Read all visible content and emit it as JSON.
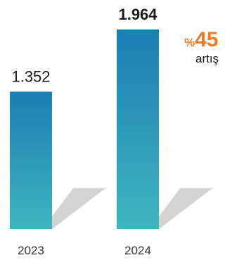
{
  "chart_data": {
    "type": "bar",
    "categories": [
      "2023",
      "2024"
    ],
    "values": [
      1352,
      1964
    ],
    "value_labels": [
      "1.352",
      "1.964"
    ],
    "value_label_weights": [
      "normal",
      "bold"
    ],
    "ylim": [
      0,
      2000
    ],
    "grid": false,
    "legend": "none",
    "bar_gradient": [
      "#1a7fb4",
      "#3fb5bf"
    ],
    "shadow_color": "#d3d3d3"
  },
  "annotation": {
    "percent_sign": "%",
    "percent_value": "45",
    "word": "artış",
    "color": "#ee7a22"
  }
}
